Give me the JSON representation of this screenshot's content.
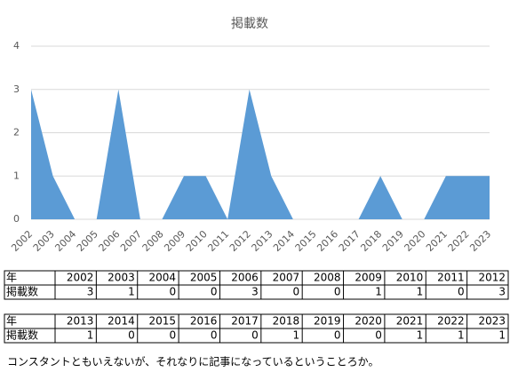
{
  "chart_data": {
    "type": "area",
    "title": "掲載数",
    "categories": [
      "2002",
      "2003",
      "2004",
      "2005",
      "2006",
      "2007",
      "2008",
      "2009",
      "2010",
      "2011",
      "2012",
      "2013",
      "2014",
      "2015",
      "2016",
      "2017",
      "2018",
      "2019",
      "2020",
      "2021",
      "2022",
      "2023"
    ],
    "values": [
      3,
      1,
      0,
      0,
      3,
      0,
      0,
      1,
      1,
      0,
      3,
      1,
      0,
      0,
      0,
      0,
      1,
      0,
      0,
      1,
      1,
      1
    ],
    "color": "#5b9bd5",
    "ylim": [
      0,
      4
    ],
    "yticks": [
      0,
      1,
      2,
      3,
      4
    ],
    "grid": true
  },
  "table": {
    "year_label": "年",
    "count_label": "掲載数"
  },
  "caption": "コンスタントともいえないが、それなりに記事になっているということろか。"
}
